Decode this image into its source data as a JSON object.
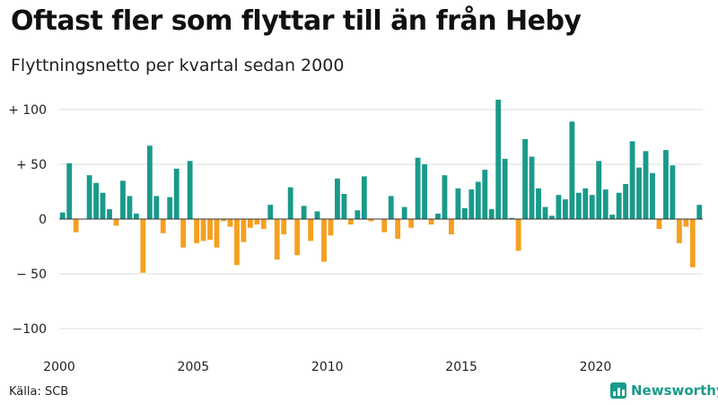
{
  "title": "Oftast fler som flyttar till än från Heby",
  "subtitle": "Flyttningsnetto per kvartal sedan 2000",
  "source": "Källa: SCB",
  "brand": {
    "name": "Newsworthy",
    "icon": "bar-chart-logo-icon"
  },
  "colors": {
    "positive": "#1a9a8a",
    "negative": "#f5a021",
    "grid": "#dddddd",
    "zero": "#333333"
  },
  "chart_data": {
    "type": "bar",
    "x_tick_labels": [
      "2000",
      "2005",
      "2010",
      "2015",
      "2020"
    ],
    "y_tick_labels": [
      "+ 100",
      "+ 50",
      "0",
      "− 50",
      "−100"
    ],
    "y_ticks": [
      100,
      50,
      0,
      -50,
      -100
    ],
    "ylim": [
      -100,
      100
    ],
    "grid": true,
    "start": "2000 Q1",
    "values": [
      6,
      51,
      -12,
      0,
      40,
      33,
      24,
      9,
      -6,
      35,
      21,
      5,
      -49,
      67,
      21,
      -13,
      20,
      46,
      -26,
      53,
      -22,
      -20,
      -19,
      -26,
      -2,
      -7,
      -42,
      -21,
      -8,
      -5,
      -9,
      13,
      -37,
      -14,
      29,
      -33,
      12,
      -20,
      7,
      -39,
      -15,
      37,
      23,
      -5,
      8,
      39,
      -2,
      0,
      -12,
      21,
      -18,
      11,
      -8,
      56,
      50,
      -5,
      5,
      40,
      -14,
      28,
      10,
      27,
      34,
      45,
      9,
      109,
      55,
      1,
      -29,
      73,
      57,
      28,
      11,
      3,
      22,
      18,
      89,
      24,
      28,
      22,
      53,
      27,
      4,
      24,
      32,
      71,
      47,
      62,
      42,
      -9,
      63,
      49,
      -22,
      -7,
      -44,
      13
    ]
  }
}
